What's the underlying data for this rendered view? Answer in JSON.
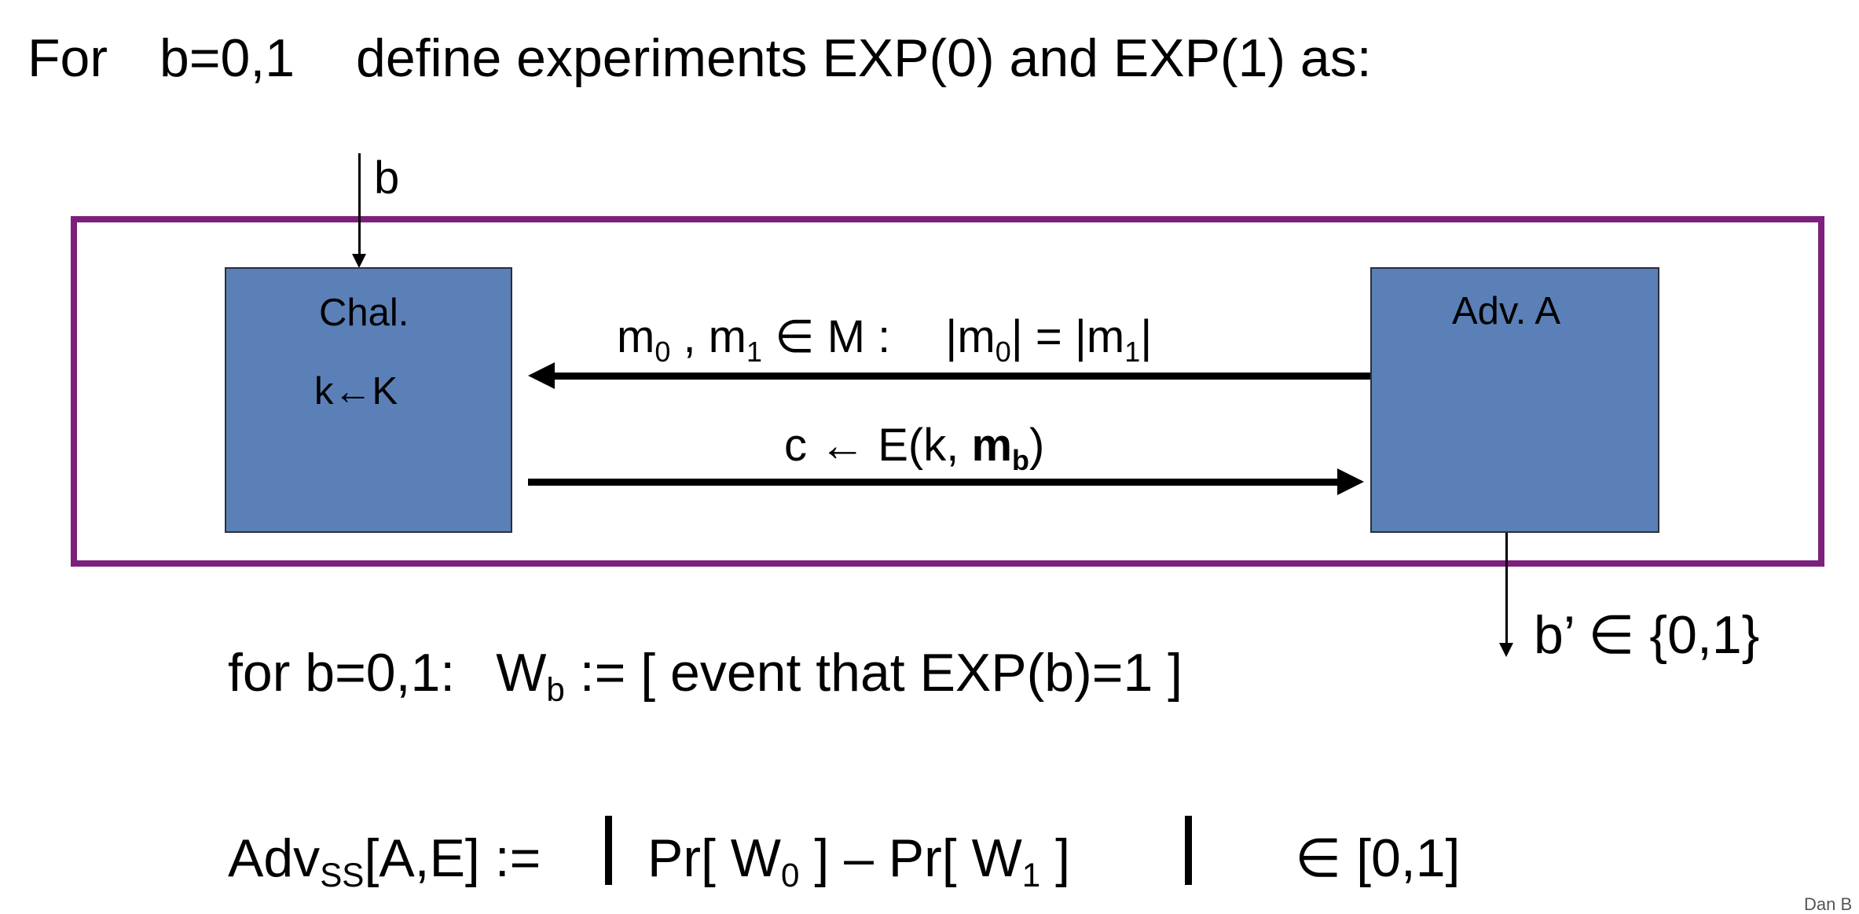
{
  "heading": {
    "prefix": "For",
    "cond": "b=0,1",
    "rest": "define experiments EXP(0) and EXP(1) as:"
  },
  "diagram": {
    "input_label": "b",
    "challenger": {
      "line1": "Chal.",
      "line2": "k←K"
    },
    "adversary": {
      "label": "Adv. A"
    },
    "msg_to_chal": {
      "m": "m",
      "sub0": "0",
      "sep": " , ",
      "sub1": "1",
      "in_set": " ∈ M :",
      "eq_left": "|m",
      "eq_mid": "| = |m",
      "eq_right": "|"
    },
    "msg_to_adv": {
      "left": "c ← E(k, ",
      "bold": "m",
      "bold_sub": "b",
      "right": ")"
    },
    "output_label": "b’ ∈ {0,1}",
    "colors": {
      "frame": "#7d1f7c",
      "box": "#5b80b7"
    }
  },
  "definition": {
    "prefix": "for b=0,1:",
    "w": "W",
    "w_sub": "b",
    "rest": " := [ event that EXP(b)=1  ]"
  },
  "advantage": {
    "adv": "Adv",
    "adv_sub": "SS",
    "args": "[A,E] :=",
    "bar": "|",
    "pr0": "Pr[ W",
    "sub0": "0",
    "close0": " ] –  Pr[ W",
    "sub1": "1",
    "close1": " ]",
    "range": "∈ [0,1]"
  },
  "corner": "Dan B"
}
